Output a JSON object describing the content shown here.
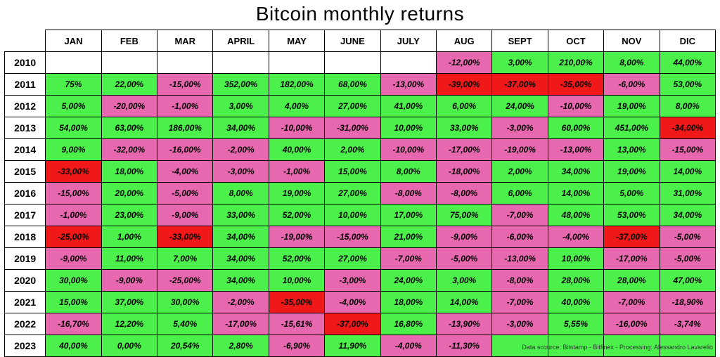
{
  "title": "Bitcoin monthly returns",
  "credit": "Data scource: Bitstamp - Bitfinex - Processing: Alessandro Lavarello",
  "colors": {
    "positive": "#4bf04b",
    "negative": "#e868b0",
    "extreme_neg": "#f01818",
    "empty": "#ffffff"
  },
  "table": {
    "columns": [
      "JAN",
      "FEB",
      "MAR",
      "APRIL",
      "MAY",
      "JUNE",
      "JULY",
      "AUG",
      "SEPT",
      "OCT",
      "NOV",
      "DIC"
    ],
    "years": [
      "2010",
      "2011",
      "2012",
      "2013",
      "2014",
      "2015",
      "2016",
      "2017",
      "2018",
      "2019",
      "2020",
      "2021",
      "2022",
      "2023"
    ],
    "rows": [
      [
        {
          "v": null,
          "c": "empty"
        },
        {
          "v": null,
          "c": "empty"
        },
        {
          "v": null,
          "c": "empty"
        },
        {
          "v": null,
          "c": "empty"
        },
        {
          "v": null,
          "c": "empty"
        },
        {
          "v": null,
          "c": "empty"
        },
        {
          "v": null,
          "c": "empty"
        },
        {
          "v": "-12,00%",
          "c": "negative"
        },
        {
          "v": "3,00%",
          "c": "positive"
        },
        {
          "v": "210,00%",
          "c": "positive"
        },
        {
          "v": "8,00%",
          "c": "positive"
        },
        {
          "v": "44,00%",
          "c": "positive"
        }
      ],
      [
        {
          "v": "75%",
          "c": "positive"
        },
        {
          "v": "22,00%",
          "c": "positive"
        },
        {
          "v": "-15,00%",
          "c": "negative"
        },
        {
          "v": "352,00%",
          "c": "positive"
        },
        {
          "v": "182,00%",
          "c": "positive"
        },
        {
          "v": "68,00%",
          "c": "positive"
        },
        {
          "v": "-13,00%",
          "c": "negative"
        },
        {
          "v": "-39,00%",
          "c": "extreme_neg"
        },
        {
          "v": "-37,00%",
          "c": "extreme_neg"
        },
        {
          "v": "-35,00%",
          "c": "extreme_neg"
        },
        {
          "v": "-6,00%",
          "c": "negative"
        },
        {
          "v": "53,00%",
          "c": "positive"
        }
      ],
      [
        {
          "v": "5,00%",
          "c": "positive"
        },
        {
          "v": "-20,00%",
          "c": "negative"
        },
        {
          "v": "-1,00%",
          "c": "negative"
        },
        {
          "v": "3,00%",
          "c": "positive"
        },
        {
          "v": "4,00%",
          "c": "positive"
        },
        {
          "v": "27,00%",
          "c": "positive"
        },
        {
          "v": "41,00%",
          "c": "positive"
        },
        {
          "v": "6,00%",
          "c": "positive"
        },
        {
          "v": "24,00%",
          "c": "positive"
        },
        {
          "v": "-10,00%",
          "c": "negative"
        },
        {
          "v": "19,00%",
          "c": "positive"
        },
        {
          "v": "8,00%",
          "c": "positive"
        }
      ],
      [
        {
          "v": "54,00%",
          "c": "positive"
        },
        {
          "v": "63,00%",
          "c": "positive"
        },
        {
          "v": "186,00%",
          "c": "positive"
        },
        {
          "v": "34,00%",
          "c": "positive"
        },
        {
          "v": "-10,00%",
          "c": "negative"
        },
        {
          "v": "-31,00%",
          "c": "negative"
        },
        {
          "v": "10,00%",
          "c": "positive"
        },
        {
          "v": "33,00%",
          "c": "positive"
        },
        {
          "v": "-3,00%",
          "c": "negative"
        },
        {
          "v": "60,00%",
          "c": "positive"
        },
        {
          "v": "451,00%",
          "c": "positive"
        },
        {
          "v": "-34,00%",
          "c": "extreme_neg"
        }
      ],
      [
        {
          "v": "9,00%",
          "c": "positive"
        },
        {
          "v": "-32,00%",
          "c": "negative"
        },
        {
          "v": "-16,00%",
          "c": "negative"
        },
        {
          "v": "-2,00%",
          "c": "negative"
        },
        {
          "v": "40,00%",
          "c": "positive"
        },
        {
          "v": "2,00%",
          "c": "positive"
        },
        {
          "v": "-10,00%",
          "c": "negative"
        },
        {
          "v": "-17,00%",
          "c": "negative"
        },
        {
          "v": "-19,00%",
          "c": "negative"
        },
        {
          "v": "-13,00%",
          "c": "negative"
        },
        {
          "v": "13,00%",
          "c": "positive"
        },
        {
          "v": "-15,00%",
          "c": "negative"
        }
      ],
      [
        {
          "v": "-33,00%",
          "c": "extreme_neg"
        },
        {
          "v": "18,00%",
          "c": "positive"
        },
        {
          "v": "-4,00%",
          "c": "negative"
        },
        {
          "v": "-3,00%",
          "c": "negative"
        },
        {
          "v": "-1,00%",
          "c": "negative"
        },
        {
          "v": "15,00%",
          "c": "positive"
        },
        {
          "v": "8,00%",
          "c": "positive"
        },
        {
          "v": "-18,00%",
          "c": "negative"
        },
        {
          "v": "2,00%",
          "c": "positive"
        },
        {
          "v": "34,00%",
          "c": "positive"
        },
        {
          "v": "19,00%",
          "c": "positive"
        },
        {
          "v": "14,00%",
          "c": "positive"
        }
      ],
      [
        {
          "v": "-15,00%",
          "c": "negative"
        },
        {
          "v": "20,00%",
          "c": "positive"
        },
        {
          "v": "-5,00%",
          "c": "negative"
        },
        {
          "v": "8,00%",
          "c": "positive"
        },
        {
          "v": "19,00%",
          "c": "positive"
        },
        {
          "v": "27,00%",
          "c": "positive"
        },
        {
          "v": "-8,00%",
          "c": "negative"
        },
        {
          "v": "-8,00%",
          "c": "negative"
        },
        {
          "v": "6,00%",
          "c": "positive"
        },
        {
          "v": "14,00%",
          "c": "positive"
        },
        {
          "v": "5,00%",
          "c": "positive"
        },
        {
          "v": "31,00%",
          "c": "positive"
        }
      ],
      [
        {
          "v": "-1,00%",
          "c": "negative"
        },
        {
          "v": "23,00%",
          "c": "positive"
        },
        {
          "v": "-9,00%",
          "c": "negative"
        },
        {
          "v": "33,00%",
          "c": "positive"
        },
        {
          "v": "52,00%",
          "c": "positive"
        },
        {
          "v": "10,00%",
          "c": "positive"
        },
        {
          "v": "17,00%",
          "c": "positive"
        },
        {
          "v": "75,00%",
          "c": "positive"
        },
        {
          "v": "-7,00%",
          "c": "negative"
        },
        {
          "v": "48,00%",
          "c": "positive"
        },
        {
          "v": "53,00%",
          "c": "positive"
        },
        {
          "v": "34,00%",
          "c": "positive"
        }
      ],
      [
        {
          "v": "-25,00%",
          "c": "extreme_neg"
        },
        {
          "v": "1,00%",
          "c": "positive"
        },
        {
          "v": "-33,00%",
          "c": "extreme_neg"
        },
        {
          "v": "34,00%",
          "c": "positive"
        },
        {
          "v": "-19,00%",
          "c": "negative"
        },
        {
          "v": "-15,00%",
          "c": "negative"
        },
        {
          "v": "21,00%",
          "c": "positive"
        },
        {
          "v": "-9,00%",
          "c": "negative"
        },
        {
          "v": "-6,00%",
          "c": "negative"
        },
        {
          "v": "-4,00%",
          "c": "negative"
        },
        {
          "v": "-37,00%",
          "c": "extreme_neg"
        },
        {
          "v": "-5,00%",
          "c": "negative"
        }
      ],
      [
        {
          "v": "-9,00%",
          "c": "negative"
        },
        {
          "v": "11,00%",
          "c": "positive"
        },
        {
          "v": "7,00%",
          "c": "positive"
        },
        {
          "v": "34,00%",
          "c": "positive"
        },
        {
          "v": "52,00%",
          "c": "positive"
        },
        {
          "v": "27,00%",
          "c": "positive"
        },
        {
          "v": "-7,00%",
          "c": "negative"
        },
        {
          "v": "-5,00%",
          "c": "negative"
        },
        {
          "v": "-13,00%",
          "c": "negative"
        },
        {
          "v": "10,00%",
          "c": "positive"
        },
        {
          "v": "-17,00%",
          "c": "negative"
        },
        {
          "v": "-5,00%",
          "c": "negative"
        }
      ],
      [
        {
          "v": "30,00%",
          "c": "positive"
        },
        {
          "v": "-9,00%",
          "c": "negative"
        },
        {
          "v": "-25,00%",
          "c": "negative"
        },
        {
          "v": "34,00%",
          "c": "positive"
        },
        {
          "v": "10,00%",
          "c": "positive"
        },
        {
          "v": "-3,00%",
          "c": "negative"
        },
        {
          "v": "24,00%",
          "c": "positive"
        },
        {
          "v": "3,00%",
          "c": "positive"
        },
        {
          "v": "-8,00%",
          "c": "negative"
        },
        {
          "v": "28,00%",
          "c": "positive"
        },
        {
          "v": "28,00%",
          "c": "positive"
        },
        {
          "v": "47,00%",
          "c": "positive"
        }
      ],
      [
        {
          "v": "15,00%",
          "c": "positive"
        },
        {
          "v": "37,00%",
          "c": "positive"
        },
        {
          "v": "30,00%",
          "c": "positive"
        },
        {
          "v": "-2,00%",
          "c": "negative"
        },
        {
          "v": "-35,00%",
          "c": "extreme_neg"
        },
        {
          "v": "-4,00%",
          "c": "negative"
        },
        {
          "v": "18,00%",
          "c": "positive"
        },
        {
          "v": "14,00%",
          "c": "positive"
        },
        {
          "v": "-7,00%",
          "c": "negative"
        },
        {
          "v": "40,00%",
          "c": "positive"
        },
        {
          "v": "-7,00%",
          "c": "negative"
        },
        {
          "v": "-18,90%",
          "c": "negative"
        }
      ],
      [
        {
          "v": "-16,70%",
          "c": "negative"
        },
        {
          "v": "12,20%",
          "c": "positive"
        },
        {
          "v": "5,40%",
          "c": "positive"
        },
        {
          "v": "-17,00%",
          "c": "negative"
        },
        {
          "v": "-15,61%",
          "c": "negative"
        },
        {
          "v": "-37,00%",
          "c": "extreme_neg"
        },
        {
          "v": "16,80%",
          "c": "positive"
        },
        {
          "v": "-13,90%",
          "c": "negative"
        },
        {
          "v": "-3,00%",
          "c": "negative"
        },
        {
          "v": "5,55%",
          "c": "positive"
        },
        {
          "v": "-16,00%",
          "c": "negative"
        },
        {
          "v": "-3,74%",
          "c": "negative"
        }
      ],
      [
        {
          "v": "40,00%",
          "c": "positive"
        },
        {
          "v": "0,00%",
          "c": "positive"
        },
        {
          "v": "20,54%",
          "c": "positive"
        },
        {
          "v": "2,80%",
          "c": "positive"
        },
        {
          "v": "-6,90%",
          "c": "negative"
        },
        {
          "v": "11,90%",
          "c": "positive"
        },
        {
          "v": "-4,00%",
          "c": "negative"
        },
        {
          "v": "-11,30%",
          "c": "negative"
        },
        {
          "v": null,
          "c": "positive"
        },
        {
          "v": null,
          "c": "positive"
        },
        {
          "v": null,
          "c": "positive"
        },
        {
          "v": null,
          "c": "positive"
        }
      ]
    ]
  }
}
